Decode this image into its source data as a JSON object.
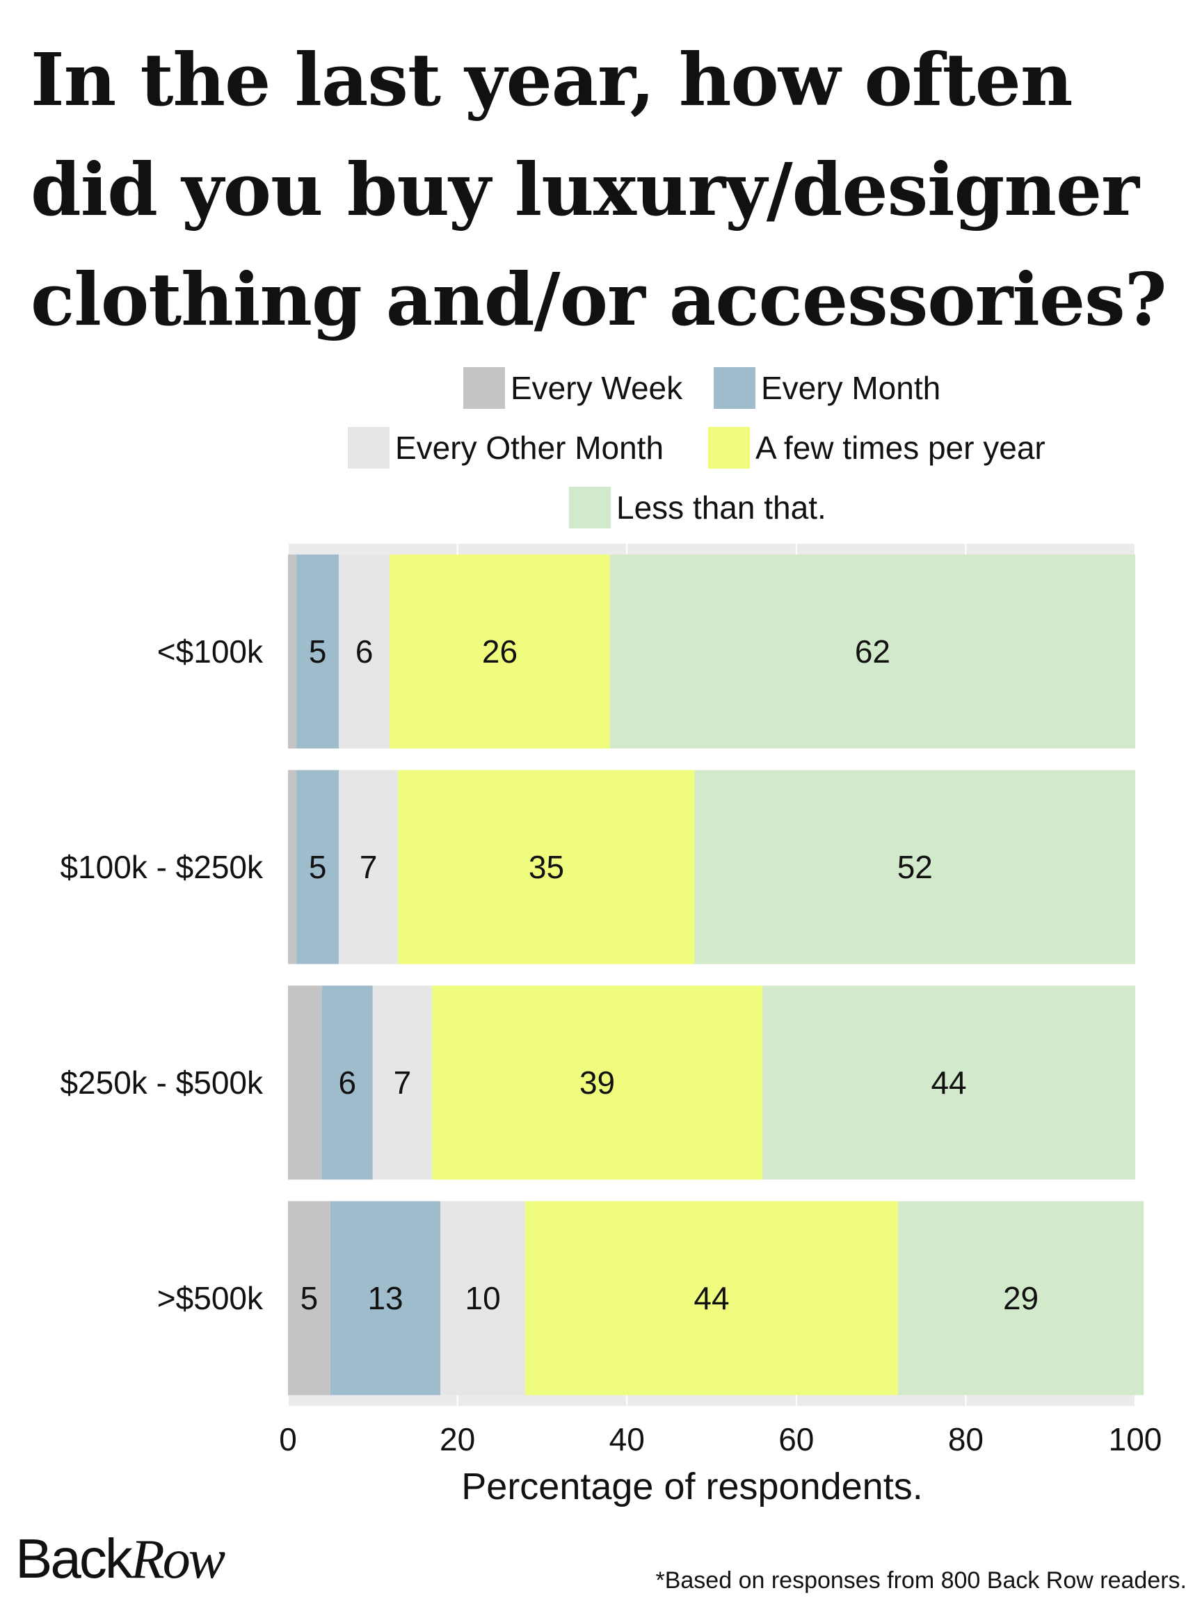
{
  "chart_data": {
    "type": "bar",
    "orientation": "horizontal",
    "stacked": true,
    "title": "In the last year, how often did you buy luxury/designer clothing and/or accessories?",
    "xlabel": "Percentage of respondents.",
    "ylabel": "",
    "xlim": [
      0,
      100
    ],
    "xticks": [
      0,
      20,
      40,
      60,
      80,
      100
    ],
    "legend_position": "top",
    "categories": [
      "<$100k",
      "$100k - $250k",
      "$250k - $500k",
      ">$500k"
    ],
    "series": [
      {
        "name": "Every Week",
        "color": "#c4c4c4",
        "values": [
          1,
          1,
          4,
          5
        ],
        "labels": [
          "",
          "",
          "",
          "5"
        ]
      },
      {
        "name": "Every Month",
        "color": "#9fbccc",
        "values": [
          5,
          5,
          6,
          13
        ],
        "labels": [
          "5",
          "5",
          "6",
          "13"
        ]
      },
      {
        "name": "Every Other Month",
        "color": "#e6e6e6",
        "values": [
          6,
          7,
          7,
          10
        ],
        "labels": [
          "6",
          "7",
          "7",
          "10"
        ]
      },
      {
        "name": "A few times per year",
        "color": "#f0fc7e",
        "values": [
          26,
          35,
          39,
          44
        ],
        "labels": [
          "26",
          "35",
          "39",
          "44"
        ]
      },
      {
        "name": "Less than that.",
        "color": "#d2e9cb",
        "values": [
          62,
          52,
          44,
          29
        ],
        "labels": [
          "62",
          "52",
          "44",
          "29"
        ]
      }
    ]
  },
  "brand": {
    "logo_back": "Back",
    "logo_row": "Row"
  },
  "footnote": "*Based on responses from  800 Back Row readers."
}
